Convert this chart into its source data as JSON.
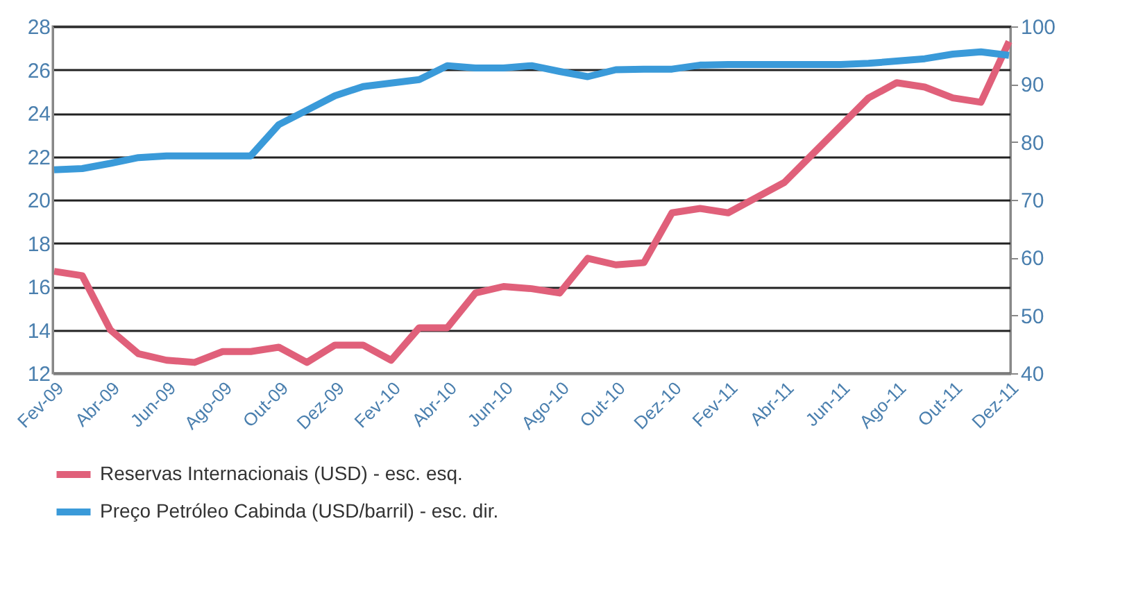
{
  "chart_data": {
    "type": "line",
    "categories": [
      "Fev-09",
      null,
      "Abr-09",
      null,
      "Jun-09",
      null,
      "Ago-09",
      null,
      "Out-09",
      null,
      "Dez-09",
      null,
      "Fev-10",
      null,
      "Abr-10",
      null,
      "Jun-10",
      null,
      "Ago-10",
      null,
      "Out-10",
      null,
      "Dez-10",
      null,
      "Fev-11",
      null,
      "Abr-11",
      null,
      "Jun-11",
      null,
      "Ago-11",
      null,
      "Out-11",
      null,
      "Dez-11"
    ],
    "series": [
      {
        "name": "Reservas Internacionais (USD) - esc. esq.",
        "color": "#e0607a",
        "axis": "y",
        "values": [
          16.7,
          16.5,
          14.0,
          12.9,
          12.6,
          12.5,
          13.0,
          13.0,
          13.2,
          12.5,
          13.3,
          13.3,
          12.6,
          14.1,
          14.1,
          15.7,
          16.0,
          15.9,
          15.7,
          17.3,
          17.0,
          17.1,
          19.4,
          19.6,
          19.4,
          20.1,
          20.8,
          22.1,
          23.4,
          24.7,
          25.4,
          25.2,
          24.7,
          24.5,
          27.3
        ]
      },
      {
        "name": "Preço Petróleo Cabinda (USD/barril) - esc. dir.",
        "color": "#3a9ad9",
        "axis": "y2",
        "values": [
          75.2,
          75.4,
          76.3,
          77.3,
          77.6,
          77.6,
          77.6,
          77.6,
          83.0,
          85.5,
          88.0,
          89.6,
          90.2,
          90.8,
          93.2,
          92.8,
          92.8,
          93.2,
          92.2,
          91.3,
          92.5,
          92.6,
          92.6,
          93.3,
          93.4,
          93.4,
          93.4,
          93.4,
          93.4,
          93.6,
          94.0,
          94.4,
          95.2,
          95.6,
          95.0
        ]
      }
    ],
    "ylim": [
      12,
      28
    ],
    "yticks": [
      12,
      14,
      16,
      18,
      20,
      22,
      24,
      26,
      28
    ],
    "y2lim": [
      40,
      100
    ],
    "y2ticks": [
      40,
      50,
      60,
      70,
      80,
      90,
      100
    ],
    "grid": "y",
    "legend": "bottom"
  }
}
